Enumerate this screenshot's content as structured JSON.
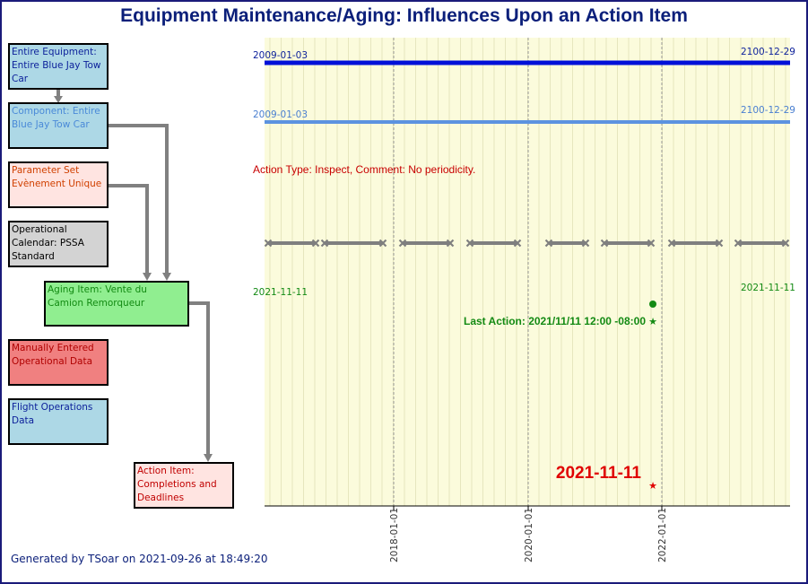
{
  "title": "Equipment Maintenance/Aging: Influences Upon an Action Item",
  "boxes": {
    "entire_equipment": "Entire Equipment: Entire Blue Jay Tow Car",
    "component": "Component: Entire Blue Jay Tow Car",
    "parameter_set": "Parameter Set Evènement Unique",
    "operational_calendar": "Operational Calendar: PSSA Standard",
    "aging_item": "Aging Item: Vente du Camion Remorqueur",
    "manually_entered": "Manually Entered Operational Data",
    "flight_operations": "Flight Operations Data",
    "action_item": "Action Item: Completions and Deadlines"
  },
  "colors": {
    "equipment_bar": "#0010d8",
    "component_bar": "#5c92e0",
    "action_text": "#c80000",
    "last_action": "#138a13",
    "deadline": "#e00000",
    "connector": "#808080",
    "plot_bg": "#fbfbdc"
  },
  "timeline": {
    "equipment_start": "2009-01-03",
    "equipment_end": "2100-12-29",
    "component_start": "2009-01-03",
    "component_end": "2100-12-29",
    "action_info": "Action Type: Inspect,  Comment: No periodicity.",
    "aging_start": "2021-11-11",
    "aging_end": "2021-11-11",
    "last_action": "Last Action: 2021/11/11 12:00 -08:00",
    "deadline": "2021-11-11",
    "x_ticks": [
      "2018-01-01",
      "2020-01-01",
      "2022-01-01"
    ]
  },
  "footer": "Generated by TSoar on 2021-09-26 at 18:49:20"
}
